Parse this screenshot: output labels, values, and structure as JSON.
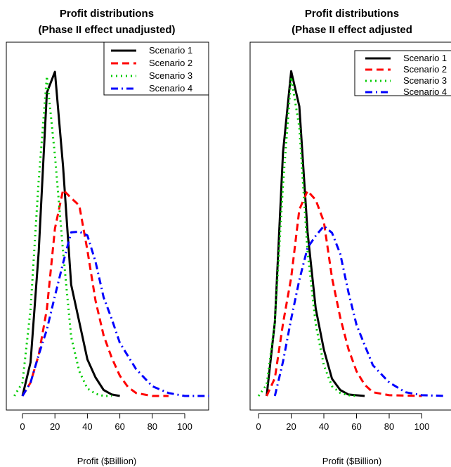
{
  "chart_data": [
    {
      "type": "line",
      "title": "Profit distributions\n(Phase II effect unadjusted)",
      "xlabel": "Profit ($Billion)",
      "ylabel": "",
      "xlim": [
        -5,
        115
      ],
      "ylim": [
        0,
        0.0452
      ],
      "xticks": [
        "0",
        "20",
        "40",
        "60",
        "80",
        "100"
      ],
      "grid": false,
      "legend": "top-right",
      "series": [
        {
          "name": "Scenario 1",
          "color": "#000000",
          "dash": "solid",
          "points": [
            [
              0,
              0.0
            ],
            [
              5,
              0.0045
            ],
            [
              10,
              0.0193
            ],
            [
              15,
              0.0406
            ],
            [
              20,
              0.0434
            ],
            [
              25,
              0.0307
            ],
            [
              30,
              0.0149
            ],
            [
              35,
              0.0099
            ],
            [
              40,
              0.0049
            ],
            [
              45,
              0.0025
            ],
            [
              50,
              0.0008
            ],
            [
              55,
              0.0002
            ],
            [
              60,
              0.0
            ]
          ]
        },
        {
          "name": "Scenario 2",
          "color": "#ff0000",
          "dash": "dashed",
          "points": [
            [
              0,
              0.0
            ],
            [
              5,
              0.0018
            ],
            [
              10,
              0.0055
            ],
            [
              15,
              0.0116
            ],
            [
              20,
              0.0224
            ],
            [
              25,
              0.0276
            ],
            [
              30,
              0.0265
            ],
            [
              35,
              0.0255
            ],
            [
              40,
              0.0195
            ],
            [
              45,
              0.0128
            ],
            [
              50,
              0.0081
            ],
            [
              55,
              0.0051
            ],
            [
              60,
              0.0027
            ],
            [
              65,
              0.0012
            ],
            [
              70,
              0.0004
            ],
            [
              80,
              0.0
            ],
            [
              90,
              0.0
            ]
          ]
        },
        {
          "name": "Scenario 3",
          "color": "#00cc00",
          "dash": "dotted",
          "points": [
            [
              -5,
              0.0
            ],
            [
              0,
              0.0018
            ],
            [
              5,
              0.0116
            ],
            [
              10,
              0.0289
            ],
            [
              15,
              0.0428
            ],
            [
              20,
              0.0322
            ],
            [
              25,
              0.0193
            ],
            [
              30,
              0.0079
            ],
            [
              35,
              0.0033
            ],
            [
              40,
              0.001
            ],
            [
              45,
              0.0003
            ],
            [
              50,
              0.0
            ],
            [
              55,
              0.0
            ]
          ]
        },
        {
          "name": "Scenario 4",
          "color": "#0000ff",
          "dash": "dotdash",
          "points": [
            [
              0,
              0.0
            ],
            [
              5,
              0.0018
            ],
            [
              10,
              0.0055
            ],
            [
              15,
              0.0089
            ],
            [
              20,
              0.0134
            ],
            [
              25,
              0.0178
            ],
            [
              30,
              0.0219
            ],
            [
              35,
              0.022
            ],
            [
              40,
              0.0215
            ],
            [
              45,
              0.018
            ],
            [
              50,
              0.0132
            ],
            [
              55,
              0.0103
            ],
            [
              60,
              0.0071
            ],
            [
              70,
              0.0036
            ],
            [
              80,
              0.0013
            ],
            [
              90,
              0.0004
            ],
            [
              100,
              0.0
            ],
            [
              115,
              0.0
            ]
          ]
        }
      ]
    },
    {
      "type": "line",
      "title": "Profit distributions\n(Phase II effect adjusted",
      "xlabel": "Profit ($Billion)",
      "ylabel": "",
      "xlim": [
        -5,
        115
      ],
      "ylim": [
        0,
        0.0452
      ],
      "xticks": [
        "0",
        "20",
        "40",
        "60",
        "80",
        "100"
      ],
      "grid": false,
      "legend": "top-right",
      "series": [
        {
          "name": "Scenario 1",
          "color": "#000000",
          "dash": "solid",
          "points": [
            [
              5,
              0.0
            ],
            [
              10,
              0.0099
            ],
            [
              15,
              0.0326
            ],
            [
              20,
              0.0434
            ],
            [
              25,
              0.0387
            ],
            [
              30,
              0.0219
            ],
            [
              35,
              0.0117
            ],
            [
              40,
              0.0062
            ],
            [
              45,
              0.0023
            ],
            [
              50,
              0.0008
            ],
            [
              55,
              0.0002
            ],
            [
              65,
              0.0
            ]
          ]
        },
        {
          "name": "Scenario 2",
          "color": "#ff0000",
          "dash": "dashed",
          "points": [
            [
              5,
              0.0
            ],
            [
              10,
              0.0024
            ],
            [
              15,
              0.0097
            ],
            [
              20,
              0.0158
            ],
            [
              25,
              0.0249
            ],
            [
              30,
              0.0274
            ],
            [
              35,
              0.0262
            ],
            [
              40,
              0.0233
            ],
            [
              45,
              0.0158
            ],
            [
              50,
              0.0105
            ],
            [
              55,
              0.0063
            ],
            [
              60,
              0.0033
            ],
            [
              65,
              0.0015
            ],
            [
              70,
              0.0005
            ],
            [
              80,
              0.0001
            ],
            [
              100,
              0.0
            ]
          ]
        },
        {
          "name": "Scenario 3",
          "color": "#00cc00",
          "dash": "dotted",
          "points": [
            [
              0,
              0.0
            ],
            [
              5,
              0.0015
            ],
            [
              10,
              0.0099
            ],
            [
              15,
              0.0283
            ],
            [
              20,
              0.0426
            ],
            [
              25,
              0.0359
            ],
            [
              30,
              0.0193
            ],
            [
              35,
              0.0096
            ],
            [
              40,
              0.0041
            ],
            [
              45,
              0.0013
            ],
            [
              50,
              0.0004
            ],
            [
              55,
              0.0001
            ],
            [
              60,
              0.0
            ]
          ]
        },
        {
          "name": "Scenario 4",
          "color": "#0000ff",
          "dash": "dotdash",
          "points": [
            [
              10,
              0.0
            ],
            [
              15,
              0.0046
            ],
            [
              20,
              0.0103
            ],
            [
              25,
              0.0155
            ],
            [
              30,
              0.0198
            ],
            [
              35,
              0.0214
            ],
            [
              40,
              0.0227
            ],
            [
              45,
              0.0218
            ],
            [
              50,
              0.019
            ],
            [
              55,
              0.0139
            ],
            [
              60,
              0.0095
            ],
            [
              65,
              0.0068
            ],
            [
              70,
              0.0041
            ],
            [
              80,
              0.0018
            ],
            [
              90,
              0.0005
            ],
            [
              100,
              0.0001
            ],
            [
              115,
              0.0
            ]
          ]
        }
      ]
    }
  ]
}
